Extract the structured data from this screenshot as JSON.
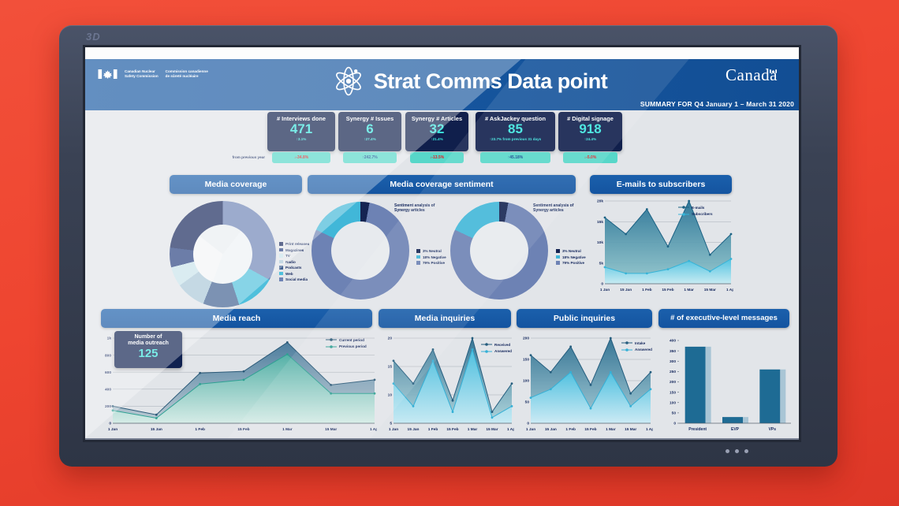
{
  "monitor": {
    "label_3d": "3D"
  },
  "header": {
    "agency_en": "Canadian Nuclear\nSafety Commission",
    "agency_fr": "Commission canadienne\nde sûreté nucléaire",
    "title": "Strat Comms Data point",
    "wordmark": "Canada",
    "summary": "SUMMARY FOR Q4 January 1 – March 31 2020"
  },
  "colors": {
    "header_blue": "#15549c",
    "card_navy": "#101f4c",
    "accent_teal": "#3ce5de",
    "pill_teal": "#57d7c9",
    "negative_red": "#e41e26",
    "positive_blue": "#14468e",
    "background_red": "#ee4530"
  },
  "icons": [
    "canada-flag-icon",
    "atom-icon",
    "wordmark-flag-icon"
  ],
  "kpis": {
    "from_previous_year_label": "from previous year",
    "cards": [
      {
        "label": "# Interviews done",
        "value": "471",
        "delta": "↑3.1%",
        "yoy": "↓-34.8%",
        "yoy_negative": true
      },
      {
        "label": "Synergy # Issues",
        "value": "6",
        "delta": "↑27.4%",
        "yoy": "↑242.7%",
        "yoy_negative": false
      },
      {
        "label": "Synergy # Articles",
        "value": "32",
        "delta": "↑21.4%",
        "yoy": "↓-13.5%",
        "yoy_negative": true
      },
      {
        "label": "# AskJackey question",
        "value": "85",
        "delta": "↑23.7% from previous 31 days",
        "yoy": "↑45.18%",
        "yoy_negative": false
      },
      {
        "label": "# Digital signage",
        "value": "918",
        "delta": "↑24.4%",
        "yoy": "↓-5.0%",
        "yoy_negative": true
      }
    ]
  },
  "panels": {
    "media_coverage": {
      "title": "Media coverage"
    },
    "sentiment": {
      "title": "Media coverage sentiment",
      "chart_label": "Sentiment analysis of\nSynergy articles"
    },
    "emails": {
      "title": "E-mails to subscribers"
    },
    "media_reach": {
      "title": "Media reach",
      "callout_label": "Number of\nmedia outreach",
      "callout_value": "125"
    },
    "media_inquiries": {
      "title": "Media inquiries"
    },
    "public_inquiries": {
      "title": "Public inquiries"
    },
    "exec": {
      "title": "# of executive-level messages"
    }
  },
  "chart_data": [
    {
      "id": "media-coverage-donut",
      "type": "pie",
      "hole": 0.56,
      "draw_order": [
        6,
        5,
        4,
        3,
        2,
        1,
        0
      ],
      "segments": [
        {
          "label": "Print releases",
          "value": 23,
          "color": "#16265a"
        },
        {
          "label": "Magazines",
          "value": 6,
          "color": "#27407f"
        },
        {
          "label": "TV",
          "value": 6,
          "color": "#c9e4ea"
        },
        {
          "label": "Radio",
          "value": 9,
          "color": "#aac8d8"
        },
        {
          "label": "Podcasts",
          "value": 11,
          "color": "#3f5f8f"
        },
        {
          "label": "Web",
          "value": 12,
          "color": "#4fc0dc"
        },
        {
          "label": "Social media",
          "value": 33,
          "color": "#6e83b5"
        }
      ]
    },
    {
      "id": "sentiment-donut",
      "type": "pie",
      "hole": 0.6,
      "draw_order": [
        0,
        2,
        1
      ],
      "title": "Sentiment analysis of Synergy articles",
      "segments": [
        {
          "label": "3% Neutral",
          "value": 3,
          "color": "#152452"
        },
        {
          "label": "18% Negative",
          "value": 18,
          "color": "#41b7d8"
        },
        {
          "label": "79% Positive",
          "value": 79,
          "color": "#6d82b4"
        }
      ]
    },
    {
      "id": "emails-chart",
      "type": "area",
      "x": [
        "1 Jan",
        "15 Jan",
        "1 Feb",
        "15 Feb",
        "1 Mar",
        "15 Mar",
        "1 Apr"
      ],
      "ylim": [
        0,
        20000
      ],
      "yticks": [
        {
          "v": 0,
          "label": "0"
        },
        {
          "v": 5000,
          "label": "5k"
        },
        {
          "v": 10000,
          "label": "10k"
        },
        {
          "v": 15000,
          "label": "15k"
        },
        {
          "v": 20000,
          "label": "20k"
        }
      ],
      "series": [
        {
          "name": "E-mails",
          "color": "#1c6284",
          "fill_top": "#2a7496",
          "fill_bottom": "#8fc6cc",
          "values": [
            16000,
            12000,
            18000,
            9000,
            20000,
            7000,
            12000
          ]
        },
        {
          "name": "Subscribers",
          "color": "#35b4d8",
          "fill_top": "#4fc3e2",
          "fill_bottom": "#cdeff6",
          "values": [
            4000,
            2500,
            2500,
            3500,
            5500,
            3000,
            6000
          ]
        }
      ]
    },
    {
      "id": "reach-chart",
      "type": "area",
      "x": [
        "1 Jan",
        "15 Jan",
        "1 Feb",
        "15 Feb",
        "1 Mar",
        "15 Mar",
        "1 Apr"
      ],
      "ylim": [
        0,
        1000
      ],
      "yticks": [
        {
          "v": 0,
          "label": "0"
        },
        {
          "v": 200,
          "label": "200"
        },
        {
          "v": 400,
          "label": "400"
        },
        {
          "v": 600,
          "label": "600"
        },
        {
          "v": 800,
          "label": "800"
        },
        {
          "v": 1000,
          "label": "1k"
        }
      ],
      "series": [
        {
          "name": "Current period",
          "color": "#2c5a78",
          "fill_top": "#45789a",
          "fill_bottom": "#b9c9d2",
          "values": [
            200,
            100,
            590,
            610,
            950,
            450,
            510
          ]
        },
        {
          "name": "Previous period",
          "color": "#2fa193",
          "fill_top": "#54b3a7",
          "fill_bottom": "#d8efe8",
          "values": [
            150,
            60,
            460,
            510,
            810,
            350,
            350
          ]
        }
      ]
    },
    {
      "id": "media-inq-chart",
      "type": "area",
      "x": [
        "1 Jan",
        "15 Jan",
        "1 Feb",
        "15 Feb",
        "1 Mar",
        "15 Mar",
        "1 Apr"
      ],
      "ylim": [
        5,
        20
      ],
      "yticks": [
        {
          "v": 5,
          "label": "5"
        },
        {
          "v": 10,
          "label": "10"
        },
        {
          "v": 15,
          "label": "15"
        },
        {
          "v": 20,
          "label": "20"
        }
      ],
      "series": [
        {
          "name": "Received",
          "color": "#255d7e",
          "fill_top": "#2d6f90",
          "fill_bottom": "#a9d3da",
          "values": [
            16,
            12,
            18,
            9,
            20,
            7,
            12
          ]
        },
        {
          "name": "Answered",
          "color": "#35b0d6",
          "fill_top": "#4fc3e2",
          "fill_bottom": "#c9ecf6",
          "values": [
            12,
            8,
            16,
            7,
            18,
            6,
            8
          ]
        }
      ]
    },
    {
      "id": "public-inq-chart",
      "type": "area",
      "x": [
        "1 Jan",
        "15 Jan",
        "1 Feb",
        "15 Feb",
        "1 Mar",
        "15 Mar",
        "1 Apr"
      ],
      "ylim": [
        0,
        200
      ],
      "yticks": [
        {
          "v": 0,
          "label": "0"
        },
        {
          "v": 50,
          "label": "50"
        },
        {
          "v": 100,
          "label": "100"
        },
        {
          "v": 150,
          "label": "150"
        },
        {
          "v": 200,
          "label": "200"
        }
      ],
      "series": [
        {
          "name": "Intake",
          "color": "#255d7e",
          "fill_top": "#2d6f90",
          "fill_bottom": "#9fc9d4",
          "values": [
            160,
            120,
            180,
            90,
            200,
            70,
            120
          ]
        },
        {
          "name": "Answered",
          "color": "#35b0d6",
          "fill_top": "#4fc3e2",
          "fill_bottom": "#d0eef8",
          "values": [
            60,
            80,
            120,
            35,
            120,
            40,
            80
          ]
        }
      ]
    },
    {
      "id": "exec-bar",
      "type": "bar",
      "categories": [
        "President",
        "EVP",
        "VPs"
      ],
      "values": [
        370,
        30,
        260
      ],
      "ylim": [
        0,
        400
      ],
      "yticks": [
        {
          "v": 0,
          "label": "0"
        },
        {
          "v": 50,
          "label": "50"
        },
        {
          "v": 100,
          "label": "100"
        },
        {
          "v": 150,
          "label": "150"
        },
        {
          "v": 200,
          "label": "200"
        },
        {
          "v": 250,
          "label": "250"
        },
        {
          "v": 300,
          "label": "300"
        },
        {
          "v": 350,
          "label": "350"
        },
        {
          "v": 400,
          "label": "400"
        }
      ],
      "bar_color": "#1e6b94",
      "bar_side_color": "#a9c5d5"
    }
  ]
}
